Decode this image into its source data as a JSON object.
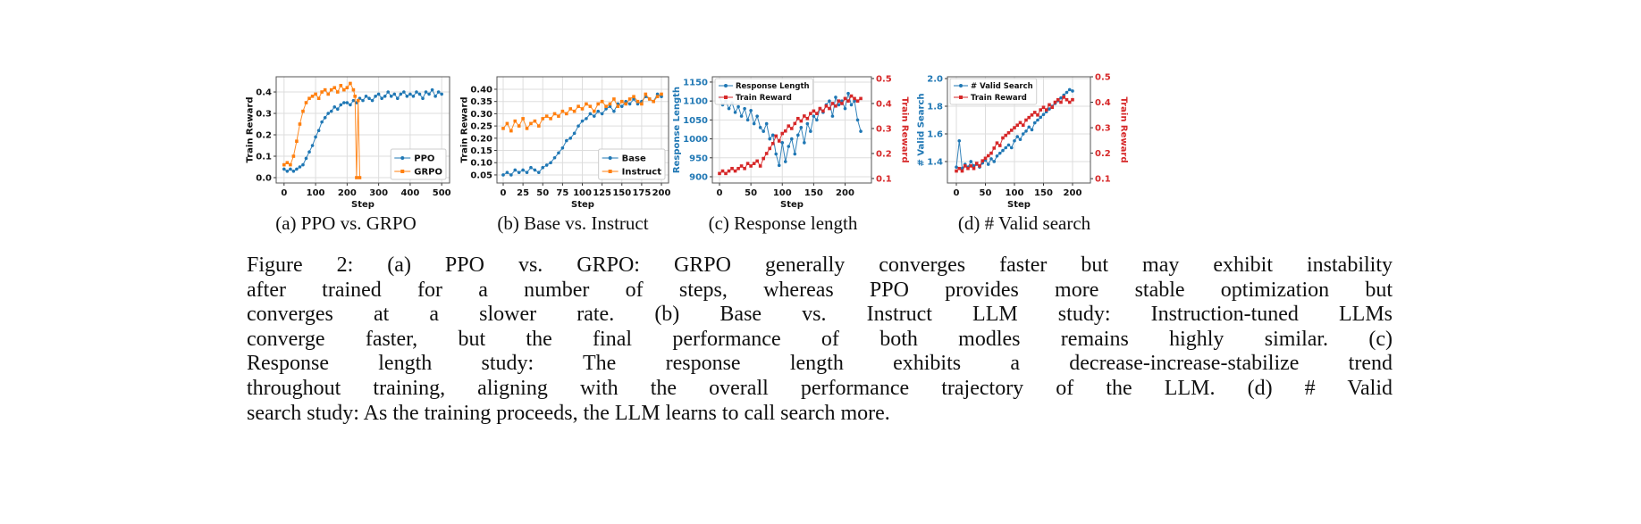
{
  "chart_data": [
    {
      "id": "a",
      "type": "line",
      "xlabel": "Step",
      "ylabel": "Train Reward",
      "xlim": [
        -25,
        525
      ],
      "ylim": [
        -0.025,
        0.471
      ],
      "xticks": [
        0,
        100,
        200,
        300,
        400,
        500
      ],
      "yticks": [
        0.0,
        0.1,
        0.2,
        0.3,
        0.4
      ],
      "ytick_format": 1,
      "grid": true,
      "legend": "bottom-right",
      "series": [
        {
          "name": "PPO",
          "color": "#1f77b4",
          "marker": "circle",
          "x": [
            0,
            10,
            20,
            30,
            40,
            50,
            60,
            70,
            80,
            90,
            100,
            110,
            120,
            130,
            140,
            150,
            160,
            170,
            180,
            190,
            200,
            210,
            220,
            230,
            240,
            250,
            260,
            270,
            280,
            290,
            300,
            310,
            320,
            330,
            340,
            350,
            360,
            370,
            380,
            390,
            400,
            410,
            420,
            430,
            440,
            450,
            460,
            470,
            480,
            490,
            500
          ],
          "y": [
            0.04,
            0.03,
            0.04,
            0.03,
            0.04,
            0.05,
            0.06,
            0.09,
            0.12,
            0.15,
            0.19,
            0.22,
            0.26,
            0.28,
            0.3,
            0.31,
            0.33,
            0.32,
            0.34,
            0.35,
            0.35,
            0.34,
            0.36,
            0.35,
            0.37,
            0.36,
            0.38,
            0.37,
            0.36,
            0.38,
            0.39,
            0.37,
            0.38,
            0.4,
            0.38,
            0.39,
            0.37,
            0.39,
            0.4,
            0.38,
            0.39,
            0.38,
            0.4,
            0.39,
            0.37,
            0.4,
            0.39,
            0.41,
            0.38,
            0.4,
            0.39
          ]
        },
        {
          "name": "GRPO",
          "color": "#ff7f0e",
          "marker": "square",
          "x": [
            0,
            10,
            20,
            30,
            40,
            50,
            60,
            70,
            80,
            90,
            100,
            110,
            120,
            130,
            140,
            150,
            160,
            170,
            180,
            190,
            200,
            210,
            220,
            225,
            230,
            235,
            240
          ],
          "y": [
            0.06,
            0.07,
            0.06,
            0.1,
            0.17,
            0.25,
            0.31,
            0.35,
            0.37,
            0.38,
            0.39,
            0.37,
            0.4,
            0.41,
            0.39,
            0.41,
            0.42,
            0.4,
            0.43,
            0.41,
            0.42,
            0.44,
            0.41,
            0.38,
            0.0,
            0.36,
            0.0
          ]
        }
      ]
    },
    {
      "id": "b",
      "type": "line",
      "xlabel": "Step",
      "ylabel": "Train Reward",
      "xlim": [
        -7.9,
        209
      ],
      "ylim": [
        0.017,
        0.451
      ],
      "xticks": [
        0,
        25,
        50,
        75,
        100,
        125,
        150,
        175,
        200
      ],
      "yticks": [
        0.05,
        0.1,
        0.15,
        0.2,
        0.25,
        0.3,
        0.35,
        0.4
      ],
      "ytick_format": 2,
      "grid": true,
      "legend": "bottom-right",
      "series": [
        {
          "name": "Base",
          "color": "#1f77b4",
          "marker": "circle",
          "x": [
            0,
            5,
            10,
            15,
            20,
            25,
            30,
            35,
            40,
            45,
            50,
            55,
            60,
            65,
            70,
            75,
            80,
            85,
            90,
            95,
            100,
            105,
            110,
            115,
            120,
            125,
            130,
            135,
            140,
            145,
            150,
            155,
            160,
            165,
            170,
            175,
            180,
            185,
            190,
            195,
            200
          ],
          "y": [
            0.05,
            0.06,
            0.05,
            0.07,
            0.06,
            0.07,
            0.06,
            0.08,
            0.07,
            0.06,
            0.08,
            0.09,
            0.1,
            0.12,
            0.14,
            0.16,
            0.19,
            0.2,
            0.22,
            0.25,
            0.27,
            0.28,
            0.3,
            0.29,
            0.31,
            0.3,
            0.32,
            0.33,
            0.31,
            0.34,
            0.33,
            0.35,
            0.34,
            0.36,
            0.34,
            0.35,
            0.37,
            0.36,
            0.35,
            0.38,
            0.37
          ]
        },
        {
          "name": "Instruct",
          "color": "#ff7f0e",
          "marker": "square",
          "x": [
            0,
            5,
            10,
            15,
            20,
            25,
            30,
            35,
            40,
            45,
            50,
            55,
            60,
            65,
            70,
            75,
            80,
            85,
            90,
            95,
            100,
            105,
            110,
            115,
            120,
            125,
            130,
            135,
            140,
            145,
            150,
            155,
            160,
            165,
            170,
            175,
            180,
            185,
            190,
            195,
            200
          ],
          "y": [
            0.24,
            0.26,
            0.23,
            0.27,
            0.25,
            0.28,
            0.24,
            0.26,
            0.27,
            0.25,
            0.28,
            0.29,
            0.28,
            0.3,
            0.29,
            0.31,
            0.3,
            0.32,
            0.31,
            0.33,
            0.32,
            0.34,
            0.33,
            0.31,
            0.34,
            0.35,
            0.33,
            0.34,
            0.36,
            0.33,
            0.35,
            0.34,
            0.36,
            0.37,
            0.35,
            0.34,
            0.38,
            0.36,
            0.35,
            0.37,
            0.38
          ]
        }
      ]
    },
    {
      "id": "c",
      "type": "line",
      "xlabel": "Step",
      "ylabel": "Response Length",
      "ylabel_right": "Train Reward",
      "xlim": [
        -11.4,
        242
      ],
      "ylim": [
        883.5,
        1164
      ],
      "ylim_right": [
        0.082,
        0.507
      ],
      "xticks": [
        0,
        50,
        100,
        150,
        200
      ],
      "yticks": [
        900,
        950,
        1000,
        1050,
        1100,
        1150
      ],
      "yticks_right": [
        0.1,
        0.2,
        0.3,
        0.4,
        0.5
      ],
      "ytick_format": 0,
      "ytick_format_right": 1,
      "grid": true,
      "legend": "top",
      "left_color": "#1f77b4",
      "right_color": "#d62728",
      "series": [
        {
          "name": "Response Length",
          "color": "#1f77b4",
          "marker": "circle",
          "axis": "left",
          "x": [
            0,
            5,
            10,
            15,
            20,
            25,
            30,
            35,
            40,
            45,
            50,
            55,
            60,
            65,
            70,
            75,
            80,
            85,
            90,
            95,
            100,
            105,
            110,
            115,
            120,
            125,
            130,
            135,
            140,
            145,
            150,
            155,
            160,
            165,
            170,
            175,
            180,
            185,
            190,
            195,
            200,
            205,
            210,
            215,
            220,
            225
          ],
          "y": [
            1110,
            1090,
            1100,
            1080,
            1095,
            1070,
            1085,
            1060,
            1080,
            1050,
            1075,
            1040,
            1060,
            1030,
            1020,
            1040,
            1000,
            1010,
            960,
            930,
            990,
            940,
            980,
            1000,
            960,
            1010,
            1030,
            990,
            1040,
            1020,
            1060,
            1050,
            1080,
            1070,
            1090,
            1100,
            1060,
            1110,
            1090,
            1100,
            1080,
            1120,
            1090,
            1100,
            1050,
            1020
          ]
        },
        {
          "name": "Train Reward",
          "color": "#d62728",
          "marker": "square",
          "axis": "right",
          "x": [
            0,
            5,
            10,
            15,
            20,
            25,
            30,
            35,
            40,
            45,
            50,
            55,
            60,
            65,
            70,
            75,
            80,
            85,
            90,
            95,
            100,
            105,
            110,
            115,
            120,
            125,
            130,
            135,
            140,
            145,
            150,
            155,
            160,
            165,
            170,
            175,
            180,
            185,
            190,
            195,
            200,
            205,
            210,
            215,
            220,
            225
          ],
          "y": [
            0.12,
            0.13,
            0.12,
            0.13,
            0.14,
            0.13,
            0.14,
            0.15,
            0.14,
            0.16,
            0.15,
            0.16,
            0.17,
            0.15,
            0.18,
            0.2,
            0.22,
            0.24,
            0.27,
            0.25,
            0.28,
            0.29,
            0.31,
            0.3,
            0.32,
            0.34,
            0.33,
            0.35,
            0.34,
            0.36,
            0.37,
            0.36,
            0.38,
            0.37,
            0.39,
            0.38,
            0.4,
            0.39,
            0.41,
            0.4,
            0.42,
            0.41,
            0.43,
            0.42,
            0.41,
            0.42
          ]
        }
      ]
    },
    {
      "id": "d",
      "type": "line",
      "xlabel": "Step",
      "ylabel": "# Valid Search",
      "ylabel_right": "Train Reward",
      "xlim": [
        -15.4,
        230.8
      ],
      "ylim": [
        1.245,
        2.013
      ],
      "ylim_right": [
        0.083,
        0.5
      ],
      "xticks": [
        0,
        50,
        100,
        150,
        200
      ],
      "yticks": [
        1.4,
        1.6,
        1.8,
        2.0
      ],
      "yticks_right": [
        0.1,
        0.2,
        0.3,
        0.4,
        0.5
      ],
      "ytick_format": 1,
      "ytick_format_right": 1,
      "grid": true,
      "legend": "top",
      "left_color": "#1f77b4",
      "right_color": "#d62728",
      "series": [
        {
          "name": "# Valid Search",
          "color": "#1f77b4",
          "marker": "circle",
          "axis": "left",
          "x": [
            0,
            5,
            10,
            15,
            20,
            25,
            30,
            35,
            40,
            45,
            50,
            55,
            60,
            65,
            70,
            75,
            80,
            85,
            90,
            95,
            100,
            105,
            110,
            115,
            120,
            125,
            130,
            135,
            140,
            145,
            150,
            155,
            160,
            165,
            170,
            175,
            180,
            185,
            190,
            195,
            200
          ],
          "y": [
            1.36,
            1.55,
            1.35,
            1.38,
            1.36,
            1.4,
            1.37,
            1.38,
            1.36,
            1.39,
            1.41,
            1.38,
            1.42,
            1.4,
            1.44,
            1.46,
            1.48,
            1.5,
            1.52,
            1.5,
            1.55,
            1.58,
            1.56,
            1.6,
            1.62,
            1.65,
            1.63,
            1.68,
            1.7,
            1.72,
            1.74,
            1.76,
            1.78,
            1.8,
            1.82,
            1.84,
            1.86,
            1.88,
            1.9,
            1.92,
            1.91
          ]
        },
        {
          "name": "Train Reward",
          "color": "#d62728",
          "marker": "square",
          "axis": "right",
          "x": [
            0,
            5,
            10,
            15,
            20,
            25,
            30,
            35,
            40,
            45,
            50,
            55,
            60,
            65,
            70,
            75,
            80,
            85,
            90,
            95,
            100,
            105,
            110,
            115,
            120,
            125,
            130,
            135,
            140,
            145,
            150,
            155,
            160,
            165,
            170,
            175,
            180,
            185,
            190,
            195,
            200
          ],
          "y": [
            0.13,
            0.14,
            0.13,
            0.15,
            0.14,
            0.15,
            0.14,
            0.16,
            0.15,
            0.17,
            0.18,
            0.19,
            0.2,
            0.22,
            0.24,
            0.23,
            0.26,
            0.27,
            0.28,
            0.29,
            0.3,
            0.31,
            0.32,
            0.31,
            0.33,
            0.34,
            0.35,
            0.36,
            0.35,
            0.37,
            0.38,
            0.37,
            0.39,
            0.38,
            0.4,
            0.41,
            0.4,
            0.42,
            0.41,
            0.4,
            0.41
          ]
        }
      ]
    }
  ],
  "subcaptions": [
    "(a) PPO vs. GRPO",
    "(b) Base vs. Instruct",
    "(c) Response length",
    "(d) # Valid search"
  ],
  "caption_lines": [
    "Figure 2: (a) PPO vs. GRPO: GRPO generally converges faster but may exhibit instability",
    "after trained for a number of steps, whereas PPO provides more stable optimization but",
    "converges at a slower rate. (b) Base vs. Instruct LLM study: Instruction-tuned LLMs",
    "converge faster, but the final performance of both modles remains highly similar. (c)",
    "Response length study: The response length exhibits a decrease-increase-stabilize trend",
    "throughout training, aligning with the overall performance trajectory of the LLM. (d) # Valid",
    "search study: As the training proceeds, the LLM learns to call search more."
  ]
}
